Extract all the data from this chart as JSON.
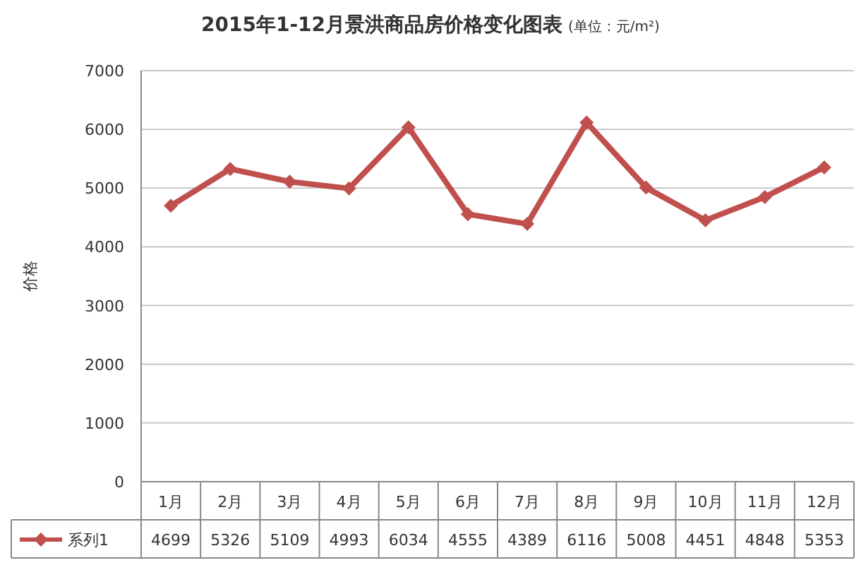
{
  "chart_data": {
    "type": "line",
    "title": "2015年1-12月景洪商品房价格变化图表",
    "subtitle": "(单位：元/m²)",
    "ylabel": "价格",
    "categories": [
      "1月",
      "2月",
      "3月",
      "4月",
      "5月",
      "6月",
      "7月",
      "8月",
      "9月",
      "10月",
      "11月",
      "12月"
    ],
    "series": [
      {
        "name": "系列1",
        "color": "#c0504d",
        "values": [
          4699,
          5326,
          5109,
          4993,
          6034,
          4555,
          4389,
          6116,
          5008,
          4451,
          4848,
          5353
        ]
      }
    ],
    "ylim": [
      0,
      7000
    ],
    "yticks": [
      0,
      1000,
      2000,
      3000,
      4000,
      5000,
      6000,
      7000
    ],
    "grid": "y",
    "marker": "diamond",
    "data_labels": true,
    "legend": "bottom"
  }
}
